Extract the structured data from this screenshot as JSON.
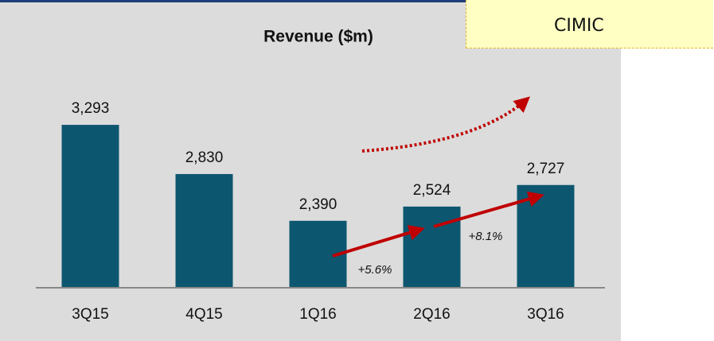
{
  "label": "CIMIC",
  "chart_data": {
    "type": "bar",
    "title": "Revenue ($m)",
    "categories": [
      "3Q15",
      "4Q15",
      "1Q16",
      "2Q16",
      "3Q16"
    ],
    "values": [
      3293,
      2830,
      2390,
      2524,
      2727
    ],
    "value_labels": [
      "3,293",
      "2,830",
      "2,390",
      "2,524",
      "2,727"
    ],
    "color": "#0d5670",
    "ylim": [
      1760,
      3720
    ],
    "annotations": [
      "+5.6%",
      "+8.1%"
    ]
  }
}
